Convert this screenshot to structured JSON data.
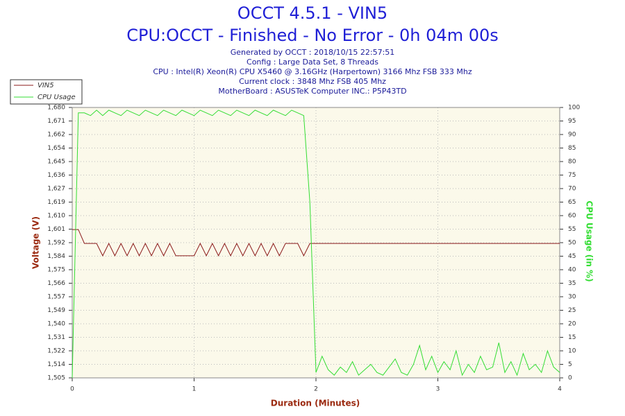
{
  "chart_data": {
    "type": "line",
    "title": "OCCT 4.5.1 - VIN5",
    "subtitle": "CPU:OCCT - Finished - No Error - 0h 04m 00s",
    "info_lines": [
      "Generated by OCCT : 2018/10/15 22:57:51",
      "Config : Large Data Set, 8 Threads",
      "CPU : Intel(R) Xeon(R) CPU X5460 @ 3.16GHz (Harpertown) 3166 Mhz FSB 333 Mhz",
      "Current clock : 3848 Mhz FSB 405 Mhz",
      "MotherBoard : ASUSTeK Computer INC.: P5P43TD"
    ],
    "xlabel": "Duration (Minutes)",
    "ylabel": "Voltage (V)",
    "y2label": "CPU Usage (in %)",
    "x": [
      0,
      0.05,
      0.1,
      0.15,
      0.2,
      0.25,
      0.3,
      0.35,
      0.4,
      0.45,
      0.5,
      0.55,
      0.6,
      0.65,
      0.7,
      0.75,
      0.8,
      0.85,
      0.9,
      0.95,
      1,
      1.05,
      1.1,
      1.15,
      1.2,
      1.25,
      1.3,
      1.35,
      1.4,
      1.45,
      1.5,
      1.55,
      1.6,
      1.65,
      1.7,
      1.75,
      1.8,
      1.85,
      1.9,
      1.95,
      2,
      2.05,
      2.1,
      2.15,
      2.2,
      2.25,
      2.3,
      2.35,
      2.4,
      2.45,
      2.5,
      2.55,
      2.6,
      2.65,
      2.7,
      2.75,
      2.8,
      2.85,
      2.9,
      2.95,
      3,
      3.05,
      3.1,
      3.15,
      3.2,
      3.25,
      3.3,
      3.35,
      3.4,
      3.45,
      3.5,
      3.55,
      3.6,
      3.65,
      3.7,
      3.75,
      3.8,
      3.85,
      3.9,
      3.95,
      4
    ],
    "series": [
      {
        "name": "VIN5",
        "color": "#8b1a1a",
        "axis": "y",
        "values": [
          1.601,
          1.601,
          1.592,
          1.592,
          1.592,
          1.584,
          1.592,
          1.584,
          1.592,
          1.584,
          1.592,
          1.584,
          1.592,
          1.584,
          1.592,
          1.584,
          1.592,
          1.584,
          1.584,
          1.584,
          1.584,
          1.592,
          1.584,
          1.592,
          1.584,
          1.592,
          1.584,
          1.592,
          1.584,
          1.592,
          1.584,
          1.592,
          1.584,
          1.592,
          1.584,
          1.592,
          1.592,
          1.592,
          1.584,
          1.592,
          1.592,
          1.592,
          1.592,
          1.592,
          1.592,
          1.592,
          1.592,
          1.592,
          1.592,
          1.592,
          1.592,
          1.592,
          1.592,
          1.592,
          1.592,
          1.592,
          1.592,
          1.592,
          1.592,
          1.592,
          1.592,
          1.592,
          1.592,
          1.592,
          1.592,
          1.592,
          1.592,
          1.592,
          1.592,
          1.592,
          1.592,
          1.592,
          1.592,
          1.592,
          1.592,
          1.592,
          1.592,
          1.592,
          1.592,
          1.592,
          1.592
        ]
      },
      {
        "name": "CPU Usage",
        "color": "#33dd33",
        "axis": "y2",
        "values": [
          0,
          98,
          98,
          97,
          99,
          97,
          99,
          98,
          97,
          99,
          98,
          97,
          99,
          98,
          97,
          99,
          98,
          97,
          99,
          98,
          97,
          99,
          98,
          97,
          99,
          98,
          97,
          99,
          98,
          97,
          99,
          98,
          97,
          99,
          98,
          97,
          99,
          98,
          97,
          65,
          2,
          8,
          3,
          1,
          4,
          2,
          6,
          1,
          3,
          5,
          2,
          1,
          4,
          7,
          2,
          1,
          5,
          12,
          3,
          8,
          2,
          6,
          3,
          10,
          1,
          5,
          2,
          8,
          3,
          4,
          13,
          2,
          6,
          1,
          9,
          3,
          5,
          2,
          10,
          4,
          2
        ]
      }
    ],
    "xlim": [
      0,
      4
    ],
    "xticks": [
      0,
      1,
      2,
      3,
      4
    ],
    "ylim": [
      1.505,
      1.68
    ],
    "yticks": [
      {
        "value": 1.505,
        "label": "1,505"
      },
      {
        "value": 1.51375,
        "label": "1,514"
      },
      {
        "value": 1.5225,
        "label": "1,522"
      },
      {
        "value": 1.53125,
        "label": "1,531"
      },
      {
        "value": 1.54,
        "label": "1,540"
      },
      {
        "value": 1.54875,
        "label": "1,549"
      },
      {
        "value": 1.5575,
        "label": "1,557"
      },
      {
        "value": 1.56625,
        "label": "1,566"
      },
      {
        "value": 1.575,
        "label": "1,575"
      },
      {
        "value": 1.58375,
        "label": "1,584"
      },
      {
        "value": 1.5925,
        "label": "1,592"
      },
      {
        "value": 1.60125,
        "label": "1,601"
      },
      {
        "value": 1.61,
        "label": "1,610"
      },
      {
        "value": 1.61875,
        "label": "1,619"
      },
      {
        "value": 1.6275,
        "label": "1,627"
      },
      {
        "value": 1.63625,
        "label": "1,636"
      },
      {
        "value": 1.645,
        "label": "1,645"
      },
      {
        "value": 1.65375,
        "label": "1,654"
      },
      {
        "value": 1.6625,
        "label": "1,662"
      },
      {
        "value": 1.67125,
        "label": "1,671"
      },
      {
        "value": 1.68,
        "label": "1,680"
      }
    ],
    "y2lim": [
      0,
      100
    ],
    "y2ticks": [
      0,
      5,
      10,
      15,
      20,
      25,
      30,
      35,
      40,
      45,
      50,
      55,
      60,
      65,
      70,
      75,
      80,
      85,
      90,
      95,
      100
    ],
    "grid": true,
    "legend": "top-left"
  }
}
